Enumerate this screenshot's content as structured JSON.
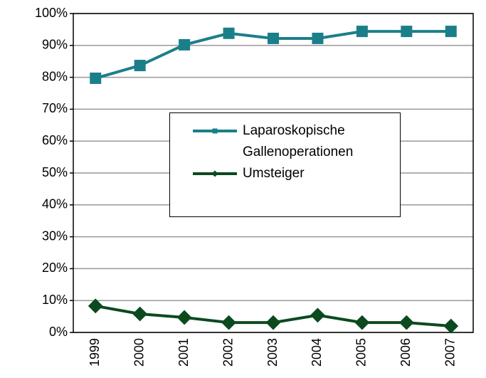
{
  "chart_data": {
    "type": "line",
    "categories": [
      "1999",
      "2000",
      "2001",
      "2002",
      "2003",
      "2004",
      "2005",
      "2006",
      "2007"
    ],
    "series": [
      {
        "name": "Laparoskopische Gallenoperationen",
        "color": "#1b7f8a",
        "marker": "square",
        "values": [
          79.7,
          83.7,
          90.2,
          93.8,
          92.2,
          92.2,
          94.4,
          94.4,
          94.4
        ]
      },
      {
        "name": "Umsteiger",
        "color": "#0b4a1f",
        "marker": "diamond",
        "values": [
          8.3,
          5.8,
          4.7,
          3.1,
          3.1,
          5.4,
          3.1,
          3.1,
          2.0
        ]
      }
    ],
    "ylim": [
      0,
      100
    ],
    "yticks": [
      {
        "value": 0,
        "label": "0%"
      },
      {
        "value": 10,
        "label": "10%"
      },
      {
        "value": 20,
        "label": "20%"
      },
      {
        "value": 30,
        "label": "30%"
      },
      {
        "value": 40,
        "label": "40%"
      },
      {
        "value": 50,
        "label": "50%"
      },
      {
        "value": 60,
        "label": "60%"
      },
      {
        "value": 70,
        "label": "70%"
      },
      {
        "value": 80,
        "label": "80%"
      },
      {
        "value": 90,
        "label": "90%"
      },
      {
        "value": 100,
        "label": "100%"
      }
    ],
    "grid": true
  }
}
